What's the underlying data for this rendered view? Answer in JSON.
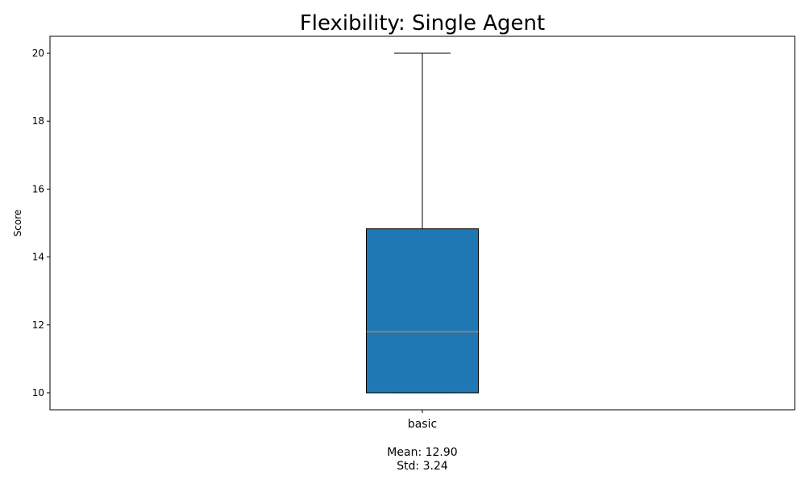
{
  "chart_data": {
    "type": "box",
    "title": "Flexibility: Single Agent",
    "xlabel": "",
    "ylabel": "Score",
    "ylim": [
      9.5,
      20.5
    ],
    "yticks": [
      10,
      12,
      14,
      16,
      18,
      20
    ],
    "grid": false,
    "categories": [
      "basic"
    ],
    "boxes": [
      {
        "category": "basic",
        "whisker_low": 10,
        "q1": 10,
        "median": 11.8,
        "q3": 14.83,
        "whisker_high": 20
      }
    ],
    "stats": [
      {
        "mean_text": "Mean: 12.90",
        "std_text": "Std: 3.24"
      }
    ],
    "colors": {
      "box_fill": "#1f77b4",
      "median": "#ff7f0e",
      "line": "#000000"
    }
  }
}
